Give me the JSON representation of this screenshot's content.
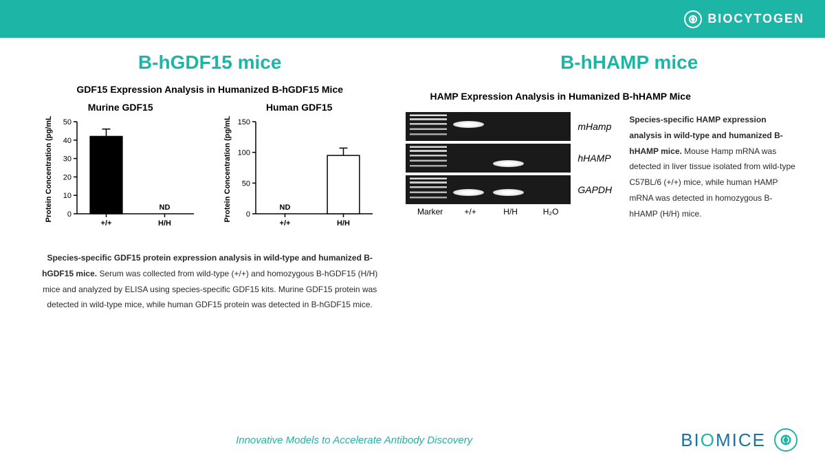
{
  "header": {
    "brand": "BIOCYTOGEN"
  },
  "left": {
    "title": "B-hGDF15 mice",
    "main_title": "GDF15 Expression Analysis in Humanized B-hGDF15 Mice",
    "chart1": {
      "type": "bar",
      "title": "Murine GDF15",
      "ylabel": "Protein Concentration (pg/mL)",
      "ylim": [
        0,
        50
      ],
      "ytick_step": 10,
      "categories": [
        "+/+",
        "H/H"
      ],
      "values": [
        42,
        0
      ],
      "errors": [
        4,
        0
      ],
      "nd_index": 1,
      "nd_label": "ND",
      "bar_color": "#000000",
      "bar_width": 0.55
    },
    "chart2": {
      "type": "bar",
      "title": "Human GDF15",
      "ylabel": "Protein Concentration (pg/mL)",
      "ylim": [
        0,
        150
      ],
      "ytick_step": 50,
      "categories": [
        "+/+",
        "H/H"
      ],
      "values": [
        0,
        95
      ],
      "errors": [
        0,
        12
      ],
      "nd_index": 0,
      "nd_label": "ND",
      "bar_color": "#ffffff",
      "bar_stroke": "#000000",
      "bar_width": 0.55
    },
    "caption_bold": "Species-specific GDF15 protein expression analysis in wild-type and humanized B-hGDF15 mice.",
    "caption_rest": " Serum was collected from wild-type (+/+) and homozygous B-hGDF15 (H/H) mice and analyzed by ELISA using species-specific GDF15 kits. Murine GDF15 protein was detected in wild-type mice, while human GDF15 protein was detected in B-hGDF15 mice."
  },
  "right": {
    "title": "B-hHAMP mice",
    "main_title": "HAMP Expression Analysis in Humanized B-hHAMP Mice",
    "lanes": [
      "Marker",
      "+/+",
      "H/H",
      "H₂O"
    ],
    "rows": [
      {
        "label": "mHamp",
        "bands": [
          null,
          13,
          null,
          null
        ]
      },
      {
        "label": "hHAMP",
        "bands": [
          null,
          null,
          24,
          null
        ]
      },
      {
        "label": "GAPDH",
        "bands": [
          null,
          20,
          20,
          null
        ]
      }
    ],
    "gel_bg": "#1a1a1a",
    "band_color": "#ffffff",
    "caption_bold": "Species-specific HAMP expression analysis in wild-type and humanized B-hHAMP mice.",
    "caption_rest": " Mouse Hamp mRNA was detected in liver tissue isolated from wild-type C57BL/6 (+/+) mice, while human HAMP mRNA was detected in homozygous B-hHAMP (H/H) mice."
  },
  "footer": {
    "tagline": "Innovative Models to Accelerate Antibody Discovery",
    "logo_pre": "BI",
    "logo_o": "O",
    "logo_post": "MICE"
  },
  "colors": {
    "accent": "#1db5a6",
    "text": "#2a2a2a",
    "axis": "#000000"
  }
}
